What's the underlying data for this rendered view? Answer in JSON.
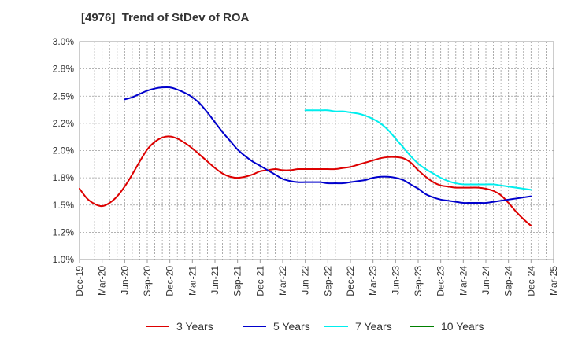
{
  "chart_data": {
    "type": "line",
    "title": "[4976]  Trend of StDev of ROA",
    "xlabel": "",
    "ylabel": "",
    "ylim": [
      0.01,
      0.03
    ],
    "y_ticks": [
      "3.0%",
      "2.8%",
      "2.5%",
      "2.2%",
      "2.0%",
      "1.8%",
      "1.5%",
      "1.2%",
      "1.0%"
    ],
    "x_ticks": [
      "Dec-19",
      "Mar-20",
      "Jun-20",
      "Sep-20",
      "Dec-20",
      "Mar-21",
      "Jun-21",
      "Sep-21",
      "Dec-21",
      "Mar-22",
      "Jun-22",
      "Sep-22",
      "Dec-22",
      "Mar-23",
      "Jun-23",
      "Sep-23",
      "Dec-23",
      "Mar-24",
      "Jun-24",
      "Sep-24",
      "Dec-24",
      "Mar-25"
    ],
    "grid": true,
    "legend_position": "bottom",
    "series": [
      {
        "name": "3 Years",
        "color": "#dd0000",
        "points": [
          [
            "Dec-19",
            0.0165
          ],
          [
            "Jan-20",
            0.0156
          ],
          [
            "Feb-20",
            0.0151
          ],
          [
            "Mar-20",
            0.0149
          ],
          [
            "Apr-20",
            0.0152
          ],
          [
            "May-20",
            0.0158
          ],
          [
            "Jun-20",
            0.0167
          ],
          [
            "Jul-20",
            0.0178
          ],
          [
            "Aug-20",
            0.019
          ],
          [
            "Sep-20",
            0.0201
          ],
          [
            "Oct-20",
            0.0208
          ],
          [
            "Nov-20",
            0.0212
          ],
          [
            "Dec-20",
            0.0213
          ],
          [
            "Jan-21",
            0.0211
          ],
          [
            "Feb-21",
            0.0207
          ],
          [
            "Mar-21",
            0.0202
          ],
          [
            "Apr-21",
            0.0196
          ],
          [
            "May-21",
            0.019
          ],
          [
            "Jun-21",
            0.0184
          ],
          [
            "Jul-21",
            0.0179
          ],
          [
            "Aug-21",
            0.0176
          ],
          [
            "Sep-21",
            0.0175
          ],
          [
            "Oct-21",
            0.0176
          ],
          [
            "Nov-21",
            0.0178
          ],
          [
            "Dec-21",
            0.0181
          ],
          [
            "Jan-22",
            0.0182
          ],
          [
            "Feb-22",
            0.0183
          ],
          [
            "Mar-22",
            0.0182
          ],
          [
            "Apr-22",
            0.0182
          ],
          [
            "May-22",
            0.0183
          ],
          [
            "Jun-22",
            0.0183
          ],
          [
            "Jul-22",
            0.0183
          ],
          [
            "Aug-22",
            0.0183
          ],
          [
            "Sep-22",
            0.0183
          ],
          [
            "Oct-22",
            0.0183
          ],
          [
            "Nov-22",
            0.0184
          ],
          [
            "Dec-22",
            0.0185
          ],
          [
            "Jan-23",
            0.0187
          ],
          [
            "Feb-23",
            0.0189
          ],
          [
            "Mar-23",
            0.0191
          ],
          [
            "Apr-23",
            0.0193
          ],
          [
            "May-23",
            0.0194
          ],
          [
            "Jun-23",
            0.0194
          ],
          [
            "Jul-23",
            0.0193
          ],
          [
            "Aug-23",
            0.0189
          ],
          [
            "Sep-23",
            0.0182
          ],
          [
            "Oct-23",
            0.0176
          ],
          [
            "Nov-23",
            0.0171
          ],
          [
            "Dec-23",
            0.0168
          ],
          [
            "Jan-24",
            0.0167
          ],
          [
            "Feb-24",
            0.0166
          ],
          [
            "Mar-24",
            0.0166
          ],
          [
            "Apr-24",
            0.0166
          ],
          [
            "May-24",
            0.0166
          ],
          [
            "Jun-24",
            0.0165
          ],
          [
            "Jul-24",
            0.0163
          ],
          [
            "Aug-24",
            0.0159
          ],
          [
            "Sep-24",
            0.0152
          ],
          [
            "Oct-24",
            0.0144
          ],
          [
            "Nov-24",
            0.0137
          ],
          [
            "Dec-24",
            0.0131
          ]
        ]
      },
      {
        "name": "5 Years",
        "color": "#0000cc",
        "points": [
          [
            "Jun-20",
            0.0247
          ],
          [
            "Jul-20",
            0.0249
          ],
          [
            "Aug-20",
            0.0252
          ],
          [
            "Sep-20",
            0.0255
          ],
          [
            "Oct-20",
            0.0257
          ],
          [
            "Nov-20",
            0.0258
          ],
          [
            "Dec-20",
            0.0258
          ],
          [
            "Jan-21",
            0.0256
          ],
          [
            "Feb-21",
            0.0253
          ],
          [
            "Mar-21",
            0.0249
          ],
          [
            "Apr-21",
            0.0243
          ],
          [
            "May-21",
            0.0235
          ],
          [
            "Jun-21",
            0.0226
          ],
          [
            "Jul-21",
            0.0217
          ],
          [
            "Aug-21",
            0.0209
          ],
          [
            "Sep-21",
            0.0201
          ],
          [
            "Oct-21",
            0.0195
          ],
          [
            "Nov-21",
            0.019
          ],
          [
            "Dec-21",
            0.0186
          ],
          [
            "Jan-22",
            0.0182
          ],
          [
            "Feb-22",
            0.0178
          ],
          [
            "Mar-22",
            0.0174
          ],
          [
            "Apr-22",
            0.0172
          ],
          [
            "May-22",
            0.0171
          ],
          [
            "Jun-22",
            0.0171
          ],
          [
            "Jul-22",
            0.0171
          ],
          [
            "Aug-22",
            0.0171
          ],
          [
            "Sep-22",
            0.017
          ],
          [
            "Oct-22",
            0.017
          ],
          [
            "Nov-22",
            0.017
          ],
          [
            "Dec-22",
            0.0171
          ],
          [
            "Jan-23",
            0.0172
          ],
          [
            "Feb-23",
            0.0173
          ],
          [
            "Mar-23",
            0.0175
          ],
          [
            "Apr-23",
            0.0176
          ],
          [
            "May-23",
            0.0176
          ],
          [
            "Jun-23",
            0.0175
          ],
          [
            "Jul-23",
            0.0173
          ],
          [
            "Aug-23",
            0.0169
          ],
          [
            "Sep-23",
            0.0165
          ],
          [
            "Oct-23",
            0.016
          ],
          [
            "Nov-23",
            0.0157
          ],
          [
            "Dec-23",
            0.0155
          ],
          [
            "Jan-24",
            0.0154
          ],
          [
            "Feb-24",
            0.0153
          ],
          [
            "Mar-24",
            0.0152
          ],
          [
            "Apr-24",
            0.0152
          ],
          [
            "May-24",
            0.0152
          ],
          [
            "Jun-24",
            0.0152
          ],
          [
            "Jul-24",
            0.0153
          ],
          [
            "Aug-24",
            0.0154
          ],
          [
            "Sep-24",
            0.0155
          ],
          [
            "Oct-24",
            0.0156
          ],
          [
            "Nov-24",
            0.0157
          ],
          [
            "Dec-24",
            0.0158
          ]
        ]
      },
      {
        "name": "7 Years",
        "color": "#00eeee",
        "points": [
          [
            "Jun-22",
            0.0237
          ],
          [
            "Jul-22",
            0.0237
          ],
          [
            "Aug-22",
            0.0237
          ],
          [
            "Sep-22",
            0.0237
          ],
          [
            "Oct-22",
            0.0236
          ],
          [
            "Nov-22",
            0.0236
          ],
          [
            "Dec-22",
            0.0235
          ],
          [
            "Jan-23",
            0.0234
          ],
          [
            "Feb-23",
            0.0232
          ],
          [
            "Mar-23",
            0.0229
          ],
          [
            "Apr-23",
            0.0225
          ],
          [
            "May-23",
            0.0219
          ],
          [
            "Jun-23",
            0.0211
          ],
          [
            "Jul-23",
            0.0203
          ],
          [
            "Aug-23",
            0.0195
          ],
          [
            "Sep-23",
            0.0188
          ],
          [
            "Oct-23",
            0.0183
          ],
          [
            "Nov-23",
            0.0179
          ],
          [
            "Dec-23",
            0.0175
          ],
          [
            "Jan-24",
            0.0172
          ],
          [
            "Feb-24",
            0.017
          ],
          [
            "Mar-24",
            0.0169
          ],
          [
            "Apr-24",
            0.0169
          ],
          [
            "May-24",
            0.0169
          ],
          [
            "Jun-24",
            0.0169
          ],
          [
            "Jul-24",
            0.0169
          ],
          [
            "Aug-24",
            0.0168
          ],
          [
            "Sep-24",
            0.0167
          ],
          [
            "Oct-24",
            0.0166
          ],
          [
            "Nov-24",
            0.0165
          ],
          [
            "Dec-24",
            0.0164
          ]
        ]
      },
      {
        "name": "10 Years",
        "color": "#008000",
        "points": []
      }
    ]
  }
}
